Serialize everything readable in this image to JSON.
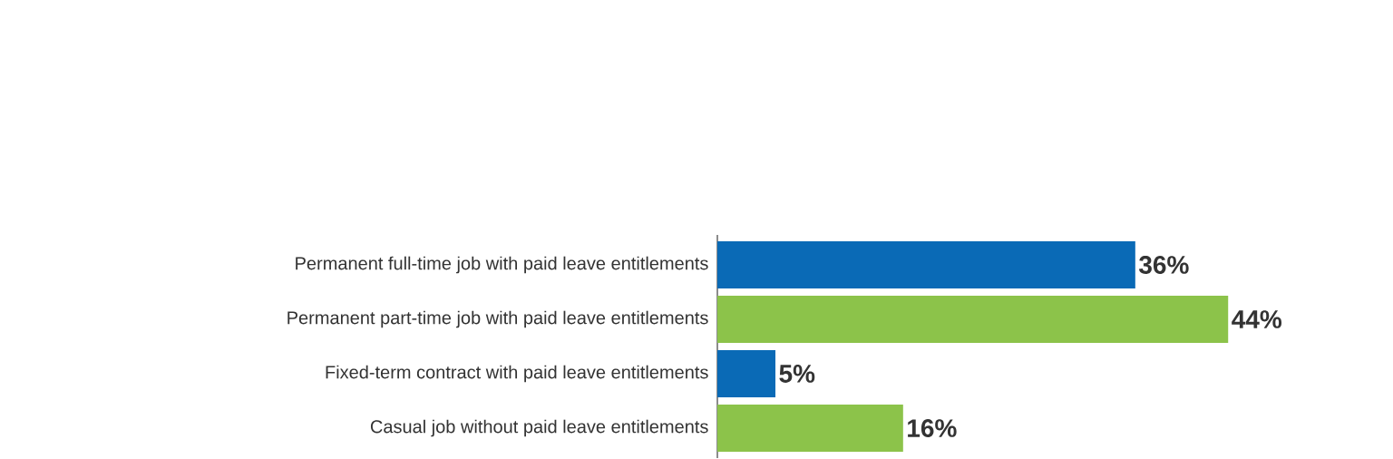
{
  "chart_data": {
    "type": "bar",
    "orientation": "horizontal",
    "categories": [
      "Permanent full-time job with paid leave entitlements",
      "Permanent part-time job with paid leave entitlements",
      "Fixed-term contract with paid leave entitlements",
      "Casual job without paid leave entitlements"
    ],
    "values": [
      36,
      44,
      5,
      16
    ],
    "colors": [
      "#0a6ab6",
      "#8cc34a",
      "#0a6ab6",
      "#8cc34a"
    ],
    "value_labels": [
      "36%",
      "44%",
      "5%",
      "16%"
    ]
  }
}
